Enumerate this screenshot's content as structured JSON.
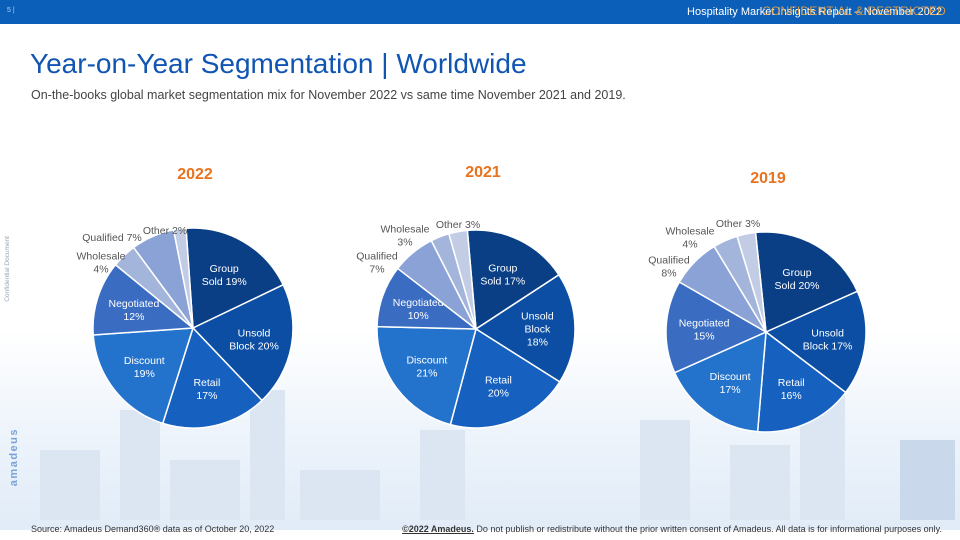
{
  "header": {
    "page_number": "5 |",
    "report_name": "Hospitality Market Insights Report – November 2022",
    "confidential": "CONFIDENTIAL & RESTRICTED"
  },
  "title": "Year-on-Year Segmentation | Worldwide",
  "subtitle": "On-the-books global market segmentation mix for November 2022 vs same time November 2021 and 2019.",
  "side_label": "Confidential Document",
  "brand": "amadeus",
  "footer": {
    "source": "Source: Amadeus Demand360® data as of October 20, 2022",
    "copyright_bold": "©2022 Amadeus.",
    "copyright_rest": " Do not publish or redistribute without the prior written consent of Amadeus. All data is for informational purposes only."
  },
  "colors": {
    "Group Sold": "#0a3f86",
    "Unsold Block": "#0c4ea3",
    "Retail": "#1660bf",
    "Discount": "#2373cd",
    "Negotiated": "#3a6cc2",
    "Qualified": "#8aa2d6",
    "Wholesale": "#a4b5dc",
    "Other": "#c2cde5"
  },
  "chart_data": [
    {
      "type": "pie",
      "title": "2022",
      "slices": [
        {
          "name": "Group Sold",
          "value": 19,
          "label": [
            "Group",
            "Sold 19%"
          ],
          "inside": true
        },
        {
          "name": "Unsold Block",
          "value": 20,
          "label": [
            "Unsold",
            "Block 20%"
          ],
          "inside": true
        },
        {
          "name": "Retail",
          "value": 17,
          "label": [
            "Retail",
            "17%"
          ],
          "inside": true
        },
        {
          "name": "Discount",
          "value": 19,
          "label": [
            "Discount",
            "19%"
          ],
          "inside": true
        },
        {
          "name": "Negotiated",
          "value": 12,
          "label": [
            "Negotiated",
            "12%"
          ],
          "inside": true
        },
        {
          "name": "Wholesale",
          "value": 4,
          "label": [
            "Wholesale",
            "4%"
          ],
          "inside": false
        },
        {
          "name": "Qualified",
          "value": 7,
          "label": [
            "Qualified 7%"
          ],
          "inside": false
        },
        {
          "name": "Other",
          "value": 2,
          "label": [
            "Other 2%"
          ],
          "inside": false
        }
      ]
    },
    {
      "type": "pie",
      "title": "2021",
      "slices": [
        {
          "name": "Group Sold",
          "value": 17,
          "label": [
            "Group",
            "Sold 17%"
          ],
          "inside": true
        },
        {
          "name": "Unsold Block",
          "value": 18,
          "label": [
            "Unsold",
            "Block",
            "18%"
          ],
          "inside": true
        },
        {
          "name": "Retail",
          "value": 20,
          "label": [
            "Retail",
            "20%"
          ],
          "inside": true
        },
        {
          "name": "Discount",
          "value": 21,
          "label": [
            "Discount",
            "21%"
          ],
          "inside": true
        },
        {
          "name": "Negotiated",
          "value": 10,
          "label": [
            "Negotiated",
            "10%"
          ],
          "inside": true
        },
        {
          "name": "Qualified",
          "value": 7,
          "label": [
            "Qualified",
            "7%"
          ],
          "inside": false
        },
        {
          "name": "Wholesale",
          "value": 3,
          "label": [
            "Wholesale",
            "3%"
          ],
          "inside": false
        },
        {
          "name": "Other",
          "value": 3,
          "label": [
            "Other 3%"
          ],
          "inside": false
        }
      ]
    },
    {
      "type": "pie",
      "title": "2019",
      "slices": [
        {
          "name": "Group Sold",
          "value": 20,
          "label": [
            "Group",
            "Sold 20%"
          ],
          "inside": true
        },
        {
          "name": "Unsold Block",
          "value": 17,
          "label": [
            "Unsold",
            "Block 17%"
          ],
          "inside": true
        },
        {
          "name": "Retail",
          "value": 16,
          "label": [
            "Retail",
            "16%"
          ],
          "inside": true
        },
        {
          "name": "Discount",
          "value": 17,
          "label": [
            "Discount",
            "17%"
          ],
          "inside": true
        },
        {
          "name": "Negotiated",
          "value": 15,
          "label": [
            "Negotiated",
            "15%"
          ],
          "inside": true
        },
        {
          "name": "Qualified",
          "value": 8,
          "label": [
            "Qualified",
            "8%"
          ],
          "inside": false
        },
        {
          "name": "Wholesale",
          "value": 4,
          "label": [
            "Wholesale",
            "4%"
          ],
          "inside": false
        },
        {
          "name": "Other",
          "value": 3,
          "label": [
            "Other 3%"
          ],
          "inside": false
        }
      ]
    }
  ]
}
